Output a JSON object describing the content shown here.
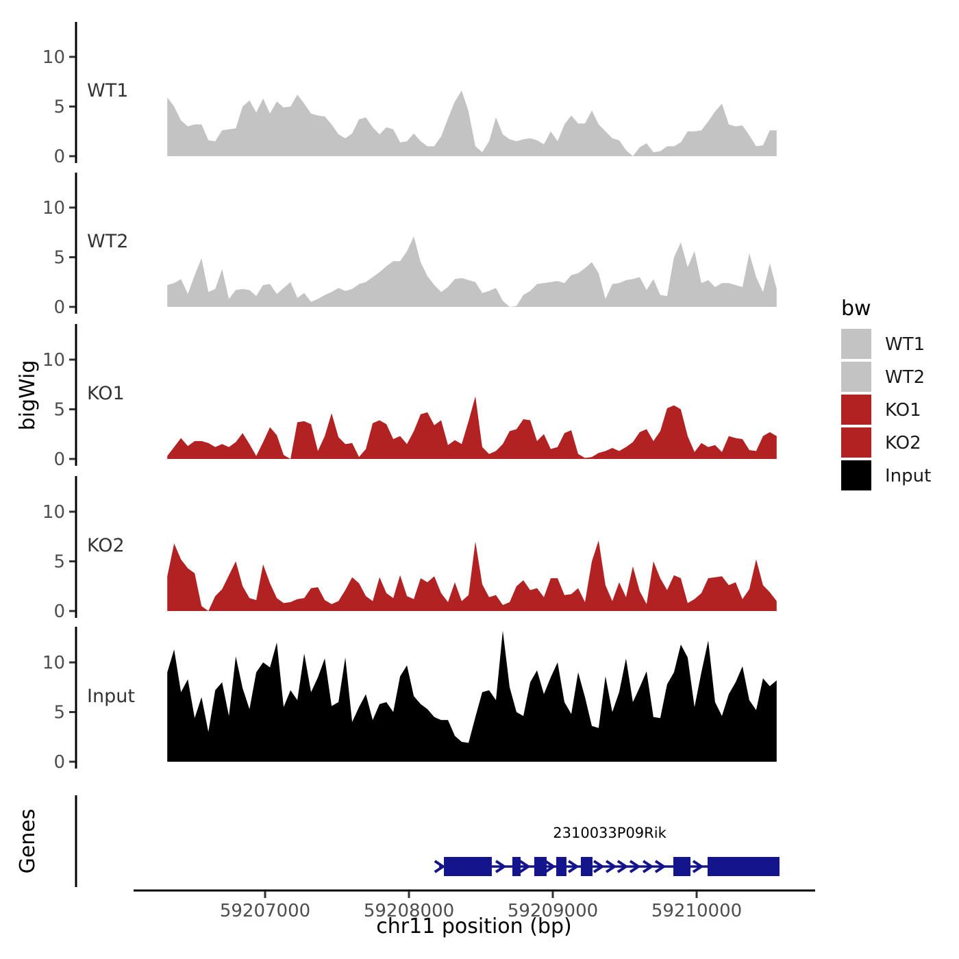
{
  "chart_data": {
    "type": "area",
    "title": "",
    "xlabel": "chr11 position (bp)",
    "ylabel": "bigWig",
    "genes_label": "Genes",
    "chrom": "chr11",
    "x_range_bp": [
      59206320,
      59210560
    ],
    "x_ticks": [
      59207000,
      59208000,
      59209000,
      59210000
    ],
    "y_ticks": [
      0,
      5,
      10
    ],
    "y_range": [
      0,
      13.5
    ],
    "grid": false,
    "legend_position": "right",
    "sample_start_bp": 59206320,
    "sample_step_bp": 47.6,
    "tracks": [
      {
        "label": "WT1",
        "color": "#C3C3C3",
        "values": [
          5.9,
          5.0,
          3.6,
          3.0,
          3.2,
          3.2,
          1.6,
          1.5,
          2.6,
          2.7,
          2.8,
          5.0,
          5.6,
          4.4,
          5.8,
          4.3,
          5.5,
          4.9,
          5.0,
          6.2,
          5.3,
          4.3,
          4.1,
          4.0,
          3.2,
          2.2,
          1.8,
          2.3,
          3.7,
          3.9,
          2.9,
          2.2,
          2.9,
          2.7,
          1.4,
          1.5,
          2.3,
          1.5,
          1.0,
          1.0,
          2.0,
          3.8,
          5.5,
          6.6,
          4.5,
          1.0,
          0.4,
          1.5,
          3.9,
          2.2,
          1.7,
          1.5,
          1.7,
          1.8,
          1.6,
          1.2,
          2.5,
          1.5,
          3.2,
          4.1,
          3.3,
          3.3,
          4.6,
          3.2,
          2.5,
          1.8,
          1.6,
          0.6,
          0,
          0.9,
          1.3,
          0.4,
          0.5,
          1.0,
          1.0,
          1.4,
          2.5,
          2.5,
          2.6,
          3.5,
          4.5,
          5.3,
          3.2,
          3.0,
          3.1,
          2.1,
          1.0,
          1.1,
          2.6,
          2.6
        ]
      },
      {
        "label": "WT2",
        "color": "#C3C3C3",
        "values": [
          2.2,
          2.4,
          2.8,
          1.3,
          3.2,
          4.9,
          1.5,
          1.8,
          3.8,
          0.8,
          1.7,
          1.8,
          1.7,
          1.1,
          2.2,
          2.3,
          1.3,
          1.9,
          2.5,
          0.9,
          1.4,
          0.5,
          0.8,
          1.2,
          1.5,
          1.9,
          1.6,
          1.8,
          2.3,
          2.5,
          3.0,
          3.5,
          4.1,
          4.6,
          4.6,
          5.6,
          7.1,
          4.5,
          3.1,
          2.2,
          1.5,
          2.0,
          2.8,
          2.9,
          2.7,
          2.5,
          1.4,
          1.6,
          1.9,
          0.6,
          0,
          0.1,
          1.2,
          1.6,
          2.3,
          2.4,
          2.5,
          2.6,
          2.4,
          3.2,
          3.4,
          3.9,
          4.5,
          3.4,
          0.8,
          2.3,
          2.4,
          2.7,
          2.8,
          3.0,
          1.7,
          2.8,
          1.2,
          1.1,
          5.0,
          6.5,
          4.0,
          5.6,
          2.4,
          2.7,
          2.0,
          2.4,
          2.4,
          2.2,
          2.0,
          5.4,
          3.0,
          1.5,
          4.4,
          1.8
        ]
      },
      {
        "label": "KO1",
        "color": "#B22222",
        "values": [
          0.3,
          1.2,
          2.1,
          1.3,
          1.8,
          1.8,
          1.6,
          1.2,
          1.5,
          1.2,
          1.7,
          2.6,
          1.5,
          0.3,
          1.7,
          3.2,
          2.4,
          0.4,
          0,
          3.7,
          3.8,
          3.5,
          0.8,
          2.3,
          4.6,
          2.2,
          1.5,
          1.6,
          0.2,
          1.0,
          3.6,
          3.9,
          3.5,
          2.0,
          2.3,
          1.5,
          2.8,
          4.5,
          4.7,
          3.4,
          3.9,
          1.4,
          1.9,
          1.5,
          3.8,
          6.3,
          1.2,
          0.5,
          0.8,
          1.5,
          2.8,
          3.0,
          4.0,
          3.9,
          1.8,
          2.5,
          1.0,
          1.2,
          2.6,
          2.9,
          0.5,
          0.1,
          0.2,
          0.6,
          0.8,
          1.1,
          0.8,
          1.2,
          1.7,
          2.7,
          3.0,
          1.8,
          2.8,
          5.1,
          5.4,
          5.0,
          2.3,
          0.7,
          1.6,
          1.2,
          1.4,
          0.7,
          2.3,
          2.1,
          2.0,
          0.9,
          0.8,
          2.3,
          2.7,
          2.3
        ]
      },
      {
        "label": "KO2",
        "color": "#B22222",
        "values": [
          3.5,
          6.8,
          5.2,
          4.3,
          3.8,
          0.5,
          0,
          1.5,
          2.2,
          3.6,
          5.0,
          2.5,
          1.3,
          1.1,
          4.7,
          2.8,
          1.3,
          0.8,
          0.9,
          1.2,
          1.3,
          2.3,
          2.4,
          1.1,
          0.7,
          1.0,
          2.1,
          3.4,
          2.8,
          1.5,
          1.0,
          3.4,
          1.8,
          1.3,
          3.6,
          1.5,
          1.2,
          3.3,
          2.9,
          3.5,
          1.8,
          0.9,
          2.9,
          1.0,
          1.6,
          7.0,
          2.7,
          1.4,
          1.6,
          0.6,
          0.9,
          2.5,
          3.1,
          2.1,
          2.3,
          1.4,
          3.3,
          3.3,
          1.6,
          1.7,
          2.3,
          0.9,
          5.0,
          7.1,
          2.6,
          1.0,
          2.9,
          1.4,
          4.5,
          2.0,
          0.7,
          5.0,
          3.3,
          2.1,
          3.6,
          3.3,
          0.8,
          1.2,
          1.8,
          3.3,
          3.4,
          3.5,
          2.6,
          2.9,
          1.2,
          2.2,
          5.2,
          2.6,
          1.9,
          1.0
        ]
      },
      {
        "label": "Input",
        "color": "#000000",
        "values": [
          9.0,
          11.3,
          7.0,
          8.3,
          4.4,
          6.5,
          3.0,
          7.2,
          8.0,
          4.6,
          10.6,
          7.4,
          5.3,
          9.0,
          10.0,
          9.5,
          12.0,
          5.5,
          7.2,
          6.2,
          10.9,
          7.0,
          8.5,
          10.4,
          5.6,
          6.0,
          10.5,
          4.0,
          5.5,
          6.8,
          4.2,
          5.8,
          6.0,
          5.0,
          8.6,
          9.7,
          6.6,
          5.8,
          5.3,
          4.5,
          4.2,
          4.2,
          2.6,
          2.0,
          1.9,
          4.5,
          7.0,
          7.2,
          6.2,
          13.2,
          7.5,
          5.0,
          4.6,
          8.0,
          9.2,
          6.8,
          8.5,
          10.0,
          6.0,
          4.8,
          9.0,
          6.5,
          3.6,
          3.4,
          8.6,
          5.0,
          7.0,
          10.4,
          6.0,
          7.5,
          9.1,
          4.5,
          4.4,
          7.8,
          9.0,
          11.8,
          10.5,
          5.5,
          9.0,
          12.2,
          6.0,
          4.6,
          6.8,
          8.0,
          9.6,
          6.2,
          5.2,
          8.4,
          7.6,
          8.2
        ]
      }
    ],
    "gene": {
      "name": "2310033P09Rik",
      "chrom": "chr11",
      "strand": "+",
      "color": "#14148C",
      "start_bp": 59208210,
      "end_bp": 59210576,
      "exons_bp": [
        [
          59208243,
          59208576
        ],
        [
          59208719,
          59208776
        ],
        [
          59208871,
          59208957
        ],
        [
          59209024,
          59209095
        ],
        [
          59209195,
          59209276
        ],
        [
          59209838,
          59209957
        ],
        [
          59210076,
          59210576
        ]
      ],
      "arrows_bp": [
        59208218,
        59208643,
        59208810,
        59208986,
        59209148,
        59209324,
        59209410,
        59209490,
        59209576,
        59209667,
        59209752,
        59210014
      ]
    },
    "legend": {
      "title": "bw",
      "entries": [
        {
          "label": "WT1",
          "color": "#C3C3C3"
        },
        {
          "label": "WT2",
          "color": "#C3C3C3"
        },
        {
          "label": "KO1",
          "color": "#B22222"
        },
        {
          "label": "KO2",
          "color": "#B22222"
        },
        {
          "label": "Input",
          "color": "#000000"
        }
      ]
    }
  }
}
